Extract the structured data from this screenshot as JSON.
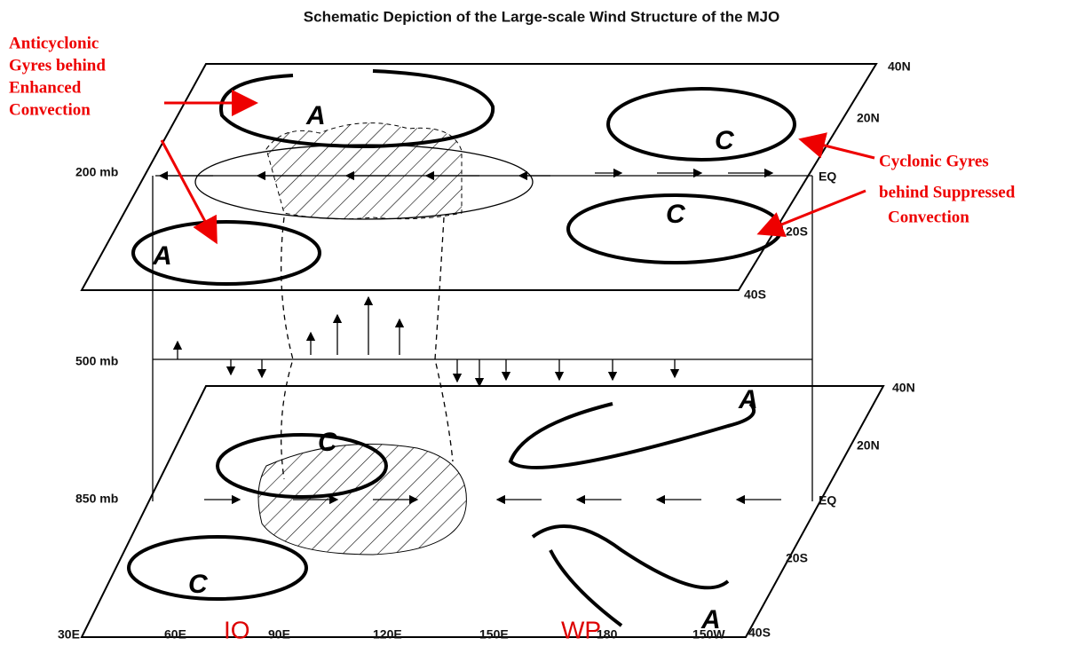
{
  "title": "Schematic Depiction of the Large-scale Wind Structure of the MJO",
  "annotations": [
    {
      "lines": [
        "Anticyclonic",
        "Gyres behind",
        "Enhanced",
        "Convection"
      ]
    },
    {
      "lines": [
        "Cyclonic Gyres",
        "behind Suppressed",
        "Convection"
      ]
    }
  ],
  "levels": [
    "200 mb",
    "500 mb",
    "850 mb"
  ],
  "upper_lat_labels": [
    "40N",
    "20N",
    "EQ",
    "20S",
    "40S"
  ],
  "lower_lat_labels": [
    "40N",
    "20N",
    "EQ",
    "20S",
    "40S"
  ],
  "lon_labels": [
    "30E",
    "60E",
    "90E",
    "120E",
    "150E",
    "180",
    "150W"
  ],
  "regions": [
    "IO",
    "WP"
  ],
  "gyre_labels": [
    "A",
    "C",
    "C",
    "A",
    "C",
    "A",
    "C",
    "A"
  ]
}
